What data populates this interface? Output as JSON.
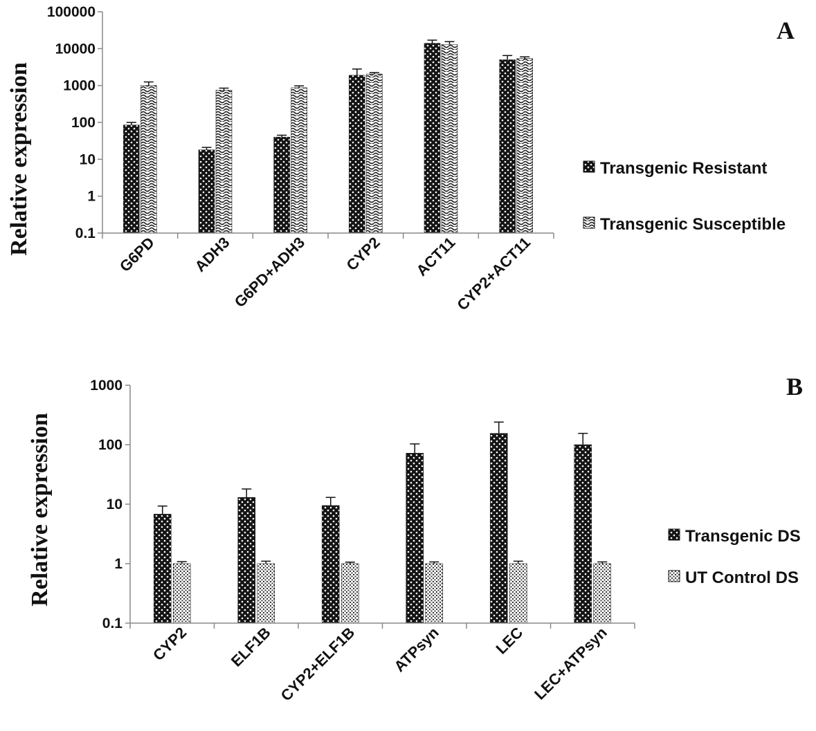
{
  "chart_data": [
    {
      "panel": "A",
      "type": "bar",
      "ylabel": "Relative expression",
      "yscale": "log",
      "ylim": [
        0.1,
        100000
      ],
      "yticks": [
        "0.1",
        "1",
        "10",
        "100",
        "1000",
        "10000",
        "100000"
      ],
      "categories": [
        "G6PD",
        "ADH3",
        "G6PD+ADH3",
        "CYP2",
        "ACT11",
        "CYP2+ACT11"
      ],
      "series": [
        {
          "name": "Transgenic Resistant",
          "pattern": "dotted-dark",
          "values": [
            85,
            18,
            40,
            1900,
            14000,
            5000
          ],
          "errors": [
            100,
            21,
            45,
            2800,
            17000,
            6500
          ]
        },
        {
          "name": "Transgenic Susceptible",
          "pattern": "wavy-light",
          "values": [
            1000,
            750,
            870,
            2050,
            13000,
            5400
          ],
          "errors": [
            1250,
            850,
            980,
            2250,
            15500,
            6000
          ]
        }
      ],
      "legend_position": "right",
      "grid": false
    },
    {
      "panel": "B",
      "type": "bar",
      "ylabel": "Relative expression",
      "yscale": "log",
      "ylim": [
        0.1,
        1000
      ],
      "yticks": [
        "0.1",
        "1",
        "10",
        "100",
        "1000"
      ],
      "categories": [
        "CYP2",
        "ELF1B",
        "CYP2+ELF1B",
        "ATPsyn",
        "LEC",
        "LEC+ATPsyn"
      ],
      "series": [
        {
          "name": "Transgenic DS",
          "pattern": "dotted-dark",
          "values": [
            6.8,
            13,
            9.5,
            72,
            155,
            100
          ],
          "errors": [
            9.3,
            18,
            13,
            103,
            240,
            155
          ]
        },
        {
          "name": "UT Control DS",
          "pattern": "dotted-light",
          "values": [
            1.0,
            1.0,
            1.0,
            1.0,
            1.0,
            1.0
          ],
          "errors": [
            1.08,
            1.1,
            1.06,
            1.07,
            1.1,
            1.07
          ]
        }
      ],
      "legend_position": "right",
      "grid": false
    }
  ]
}
